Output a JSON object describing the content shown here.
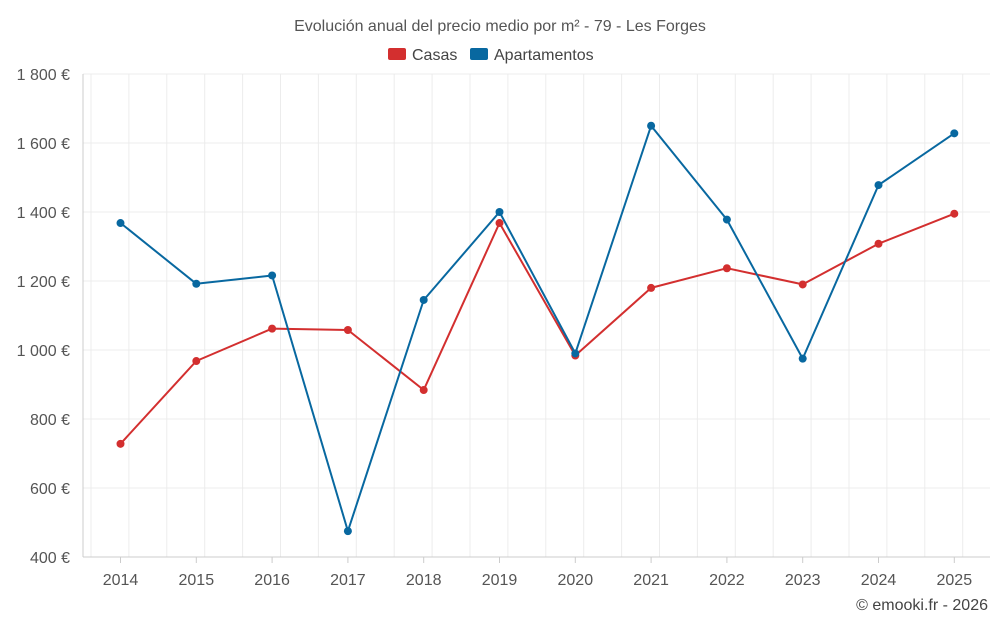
{
  "chart_data": {
    "type": "line",
    "title": "Evolución anual del precio medio por m² - 79 - Les Forges",
    "categories": [
      "2014",
      "2015",
      "2016",
      "2017",
      "2018",
      "2019",
      "2020",
      "2021",
      "2022",
      "2023",
      "2024",
      "2025"
    ],
    "series": [
      {
        "name": "Casas",
        "color": "#d32f2f",
        "values": [
          728,
          968,
          1062,
          1058,
          884,
          1368,
          984,
          1180,
          1237,
          1190,
          1308,
          1395
        ]
      },
      {
        "name": "Apartamentos",
        "color": "#0868a0",
        "values": [
          1368,
          1192,
          1216,
          475,
          1145,
          1400,
          990,
          1650,
          1378,
          975,
          1478,
          1628
        ]
      }
    ],
    "ylim": [
      400,
      1800
    ],
    "yticks": [
      400,
      600,
      800,
      1000,
      1200,
      1400,
      1600,
      1800
    ],
    "ytick_labels": [
      "400 €",
      "600 €",
      "800 €",
      "1 000 €",
      "1 200 €",
      "1 400 €",
      "1 600 €",
      "1 800 €"
    ],
    "xlabel": "",
    "ylabel": "",
    "grid": true,
    "legend_position": "top-center"
  },
  "credit": "© emooki.fr - 2026"
}
